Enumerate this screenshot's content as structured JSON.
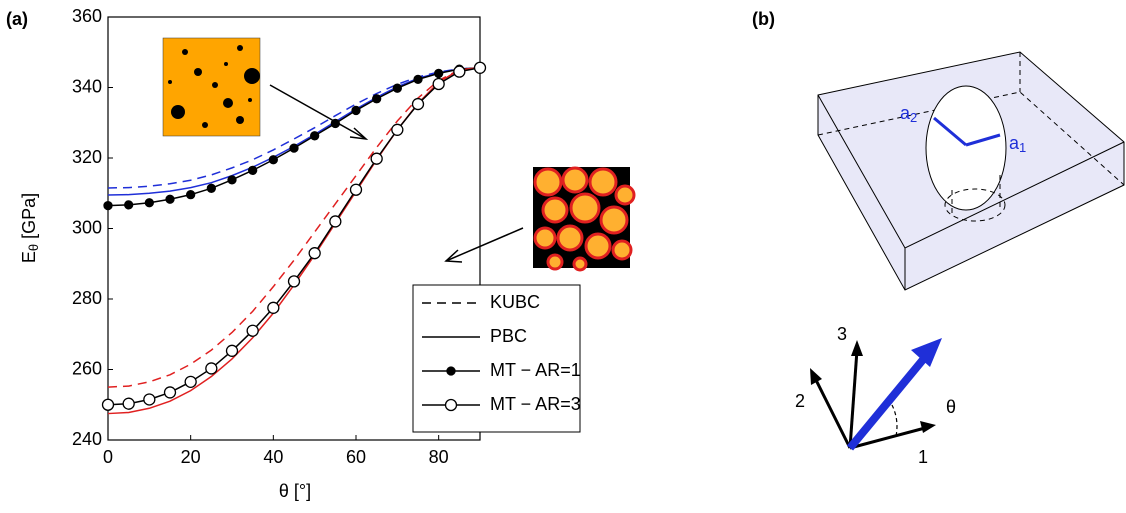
{
  "chart_data": {
    "type": "line",
    "panel_label": "(a)",
    "xlabel": "θ [°]",
    "ylabel": {
      "text": "E",
      "sub": "θ",
      "unit": "[GPa]"
    },
    "x": [
      0,
      5,
      10,
      15,
      20,
      25,
      30,
      35,
      40,
      45,
      50,
      55,
      60,
      65,
      70,
      75,
      80,
      85,
      90
    ],
    "xlim": [
      0,
      90
    ],
    "xticks": [
      0,
      20,
      40,
      60,
      80
    ],
    "ylim": [
      240,
      360
    ],
    "yticks": [
      240,
      260,
      280,
      300,
      320,
      340,
      360
    ],
    "legend": [
      {
        "name": "KUBC",
        "dash": true,
        "marker": null
      },
      {
        "name": "PBC",
        "dash": false,
        "marker": null
      },
      {
        "name": "MT − AR=1",
        "dash": false,
        "marker": "filled"
      },
      {
        "name": "MT − AR=3",
        "dash": false,
        "marker": "open"
      }
    ],
    "series": [
      {
        "color": "#1f2fd8",
        "legend": 0,
        "values": [
          311.5,
          311.6,
          312,
          312.7,
          313.7,
          315.2,
          317.2,
          319.5,
          322.3,
          325.4,
          328.6,
          332,
          335.3,
          338.3,
          340.9,
          343,
          344.4,
          345.3,
          345.6
        ]
      },
      {
        "color": "#1f2fd8",
        "legend": 1,
        "values": [
          309.5,
          309.6,
          310,
          310.6,
          311.6,
          313,
          315,
          317.4,
          320.2,
          323.3,
          326.7,
          330.3,
          333.9,
          337.2,
          340.2,
          342.6,
          344.2,
          345.2,
          345.6
        ]
      },
      {
        "color": "#000000",
        "legend": 2,
        "values": [
          306.5,
          306.7,
          307.3,
          308.3,
          309.6,
          311.4,
          313.8,
          316.5,
          319.5,
          322.8,
          326.3,
          329.8,
          333.5,
          336.8,
          339.8,
          342.3,
          344,
          345.2,
          345.6
        ]
      },
      {
        "color": "#e02020",
        "legend": 0,
        "values": [
          255,
          255.3,
          256.5,
          258.5,
          261.5,
          265.5,
          270.5,
          276.5,
          283.5,
          291,
          299,
          307,
          315,
          323,
          330.5,
          337,
          342,
          345,
          345.6
        ]
      },
      {
        "color": "#e02020",
        "legend": 1,
        "values": [
          247.5,
          247.8,
          249,
          251,
          254,
          258,
          263,
          269,
          276,
          284,
          292.5,
          301.5,
          310.5,
          319.5,
          328,
          335.5,
          341.5,
          345,
          345.6
        ]
      },
      {
        "color": "#000000",
        "legend": 3,
        "values": [
          250,
          250.3,
          251.5,
          253.5,
          256.5,
          260.3,
          265.3,
          271,
          277.5,
          285,
          293,
          302,
          311,
          319.8,
          328,
          335.3,
          341,
          344.5,
          345.6
        ]
      }
    ]
  },
  "diagram": {
    "panel_label": "(b)",
    "a1": {
      "text": "a",
      "sub": "1"
    },
    "a2": {
      "text": "a",
      "sub": "2"
    },
    "axis_labels": [
      "1",
      "2",
      "3"
    ],
    "angle": "θ"
  }
}
